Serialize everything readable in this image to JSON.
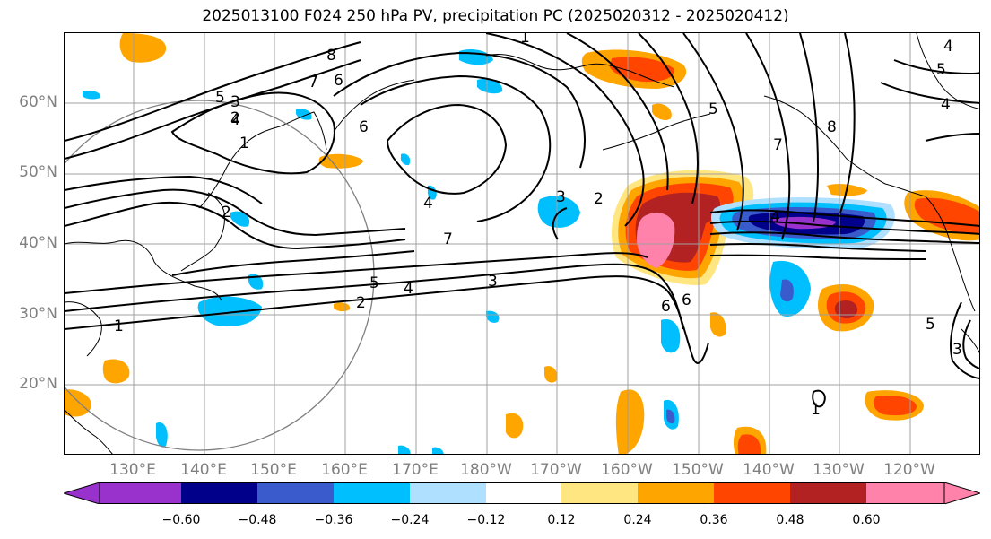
{
  "title": "2025013100 F024 250 hPa PV, precipitation PC (2025020312 - 2025020412)",
  "lat_labels": [
    "60°N",
    "50°N",
    "40°N",
    "30°N",
    "20°N"
  ],
  "lon_labels": [
    "130°E",
    "140°E",
    "150°E",
    "160°E",
    "170°E",
    "180°W",
    "170°W",
    "160°W",
    "150°W",
    "140°W",
    "130°W",
    "120°W"
  ],
  "colorbar": {
    "tick_labels": [
      "−0.60",
      "−0.48",
      "−0.36",
      "−0.24",
      "−0.12",
      "0.12",
      "0.24",
      "0.36",
      "0.48",
      "0.60"
    ],
    "colors": [
      "#9932cc",
      "#00008b",
      "#3a5bcc",
      "#00bfff",
      "#b0e0ff",
      "#ffffff",
      "#ffe680",
      "#ffa500",
      "#ff4500",
      "#b22222",
      "#ff82ab"
    ]
  },
  "contour_labels": [
    "8",
    "7",
    "6",
    "5",
    "4",
    "3",
    "2",
    "1",
    "1",
    "2",
    "3",
    "4",
    "5",
    "6",
    "6",
    "7",
    "8",
    "5",
    "4",
    "1",
    "2",
    "3",
    "4",
    "5",
    "6",
    "7",
    "2",
    "4",
    "4",
    "5",
    "1",
    "3"
  ],
  "colors": {
    "contour": "#000000",
    "grid": "#a0a0a0",
    "coast": "#000000",
    "circle": "#808080"
  }
}
